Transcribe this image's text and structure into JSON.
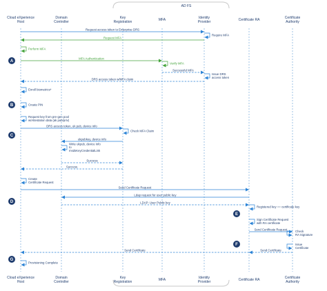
{
  "group": {
    "label": "AD FS"
  },
  "participants": [
    {
      "id": "host",
      "name": "Cloud eXperience\nHost"
    },
    {
      "id": "dc",
      "name": "Domain\nController"
    },
    {
      "id": "kr",
      "name": "Key\nRegistration"
    },
    {
      "id": "mfa",
      "name": "MFA"
    },
    {
      "id": "idp",
      "name": "Identity\nProvider"
    },
    {
      "id": "cra",
      "name": "Certificate RA"
    },
    {
      "id": "ca",
      "name": "Certificate\nAuthority"
    }
  ],
  "step_badges": [
    "A",
    "B",
    "C",
    "D",
    "E",
    "F",
    "G"
  ],
  "messages": [
    {
      "from": "host",
      "to": "idp",
      "label": "Request access token to Enterprise DRS",
      "style": "solid",
      "color": "blue"
    },
    {
      "from": "idp",
      "to": "idp",
      "label": "Require MFA",
      "style": "self",
      "color": "blue"
    },
    {
      "from": "idp",
      "to": "host",
      "label": "Request MFA",
      "style": "solid",
      "color": "green"
    },
    {
      "from": "host",
      "to": "host",
      "label": "Perform MFA",
      "style": "self",
      "color": "green"
    },
    {
      "from": "host",
      "to": "mfa",
      "label": "MFA Authentication",
      "style": "solid",
      "color": "green"
    },
    {
      "from": "mfa",
      "to": "mfa",
      "label": "Verify MFA",
      "style": "self",
      "color": "green"
    },
    {
      "from": "mfa",
      "to": "idp",
      "label": "Successful MFA",
      "style": "dashed",
      "color": "blue"
    },
    {
      "from": "idp",
      "to": "idp",
      "label": "Issue DRS\naccess token",
      "style": "self",
      "color": "blue"
    },
    {
      "from": "idp",
      "to": "host",
      "label": "DRS access token w/MFA claim",
      "style": "dashed",
      "color": "blue"
    },
    {
      "from": "host",
      "to": "host",
      "label": "Enroll biometrics*",
      "style": "self",
      "color": "blue"
    },
    {
      "from": "host",
      "to": "host",
      "label": "Create PIN",
      "style": "self",
      "color": "blue"
    },
    {
      "from": "host",
      "to": "host",
      "label": "Request key from pre-gen pool\nw/Attestation data (ak pub/priv)",
      "style": "self",
      "color": "blue"
    },
    {
      "from": "host",
      "to": "kr",
      "label": "DRS access token, uk pub, device info",
      "style": "solid",
      "color": "blue"
    },
    {
      "from": "kr",
      "to": "kr",
      "label": "Check MFA Claim",
      "style": "self",
      "color": "blue"
    },
    {
      "from": "kr",
      "to": "dc",
      "label": "ukpubkey, device info",
      "style": "solid",
      "color": "blue"
    },
    {
      "from": "dc",
      "to": "dc",
      "label": "Write ukpub, device info\nto\nmsdsKeyCredentialLink",
      "style": "self",
      "color": "blue"
    },
    {
      "from": "dc",
      "to": "kr",
      "label": "Success",
      "style": "dashed",
      "color": "blue"
    },
    {
      "from": "kr",
      "to": "host",
      "label": "Success",
      "style": "dashed",
      "color": "blue"
    },
    {
      "from": "host",
      "to": "host",
      "label": "Create\nCertificate Request",
      "style": "self",
      "color": "blue"
    },
    {
      "from": "host",
      "to": "cra",
      "label": "Send Certificate Request",
      "style": "solid",
      "color": "blue"
    },
    {
      "from": "cra",
      "to": "dc",
      "label": "Ldap request for user public key",
      "style": "solid",
      "color": "blue"
    },
    {
      "from": "dc",
      "to": "cra",
      "label": "LDAP: User Public key",
      "style": "dashed",
      "color": "blue"
    },
    {
      "from": "cra",
      "to": "cra",
      "label": "Registered key == certificate key",
      "style": "self",
      "color": "blue"
    },
    {
      "from": "cra",
      "to": "cra",
      "label": "Sign Certificate Request\nwith RA certificate",
      "style": "self",
      "color": "blue"
    },
    {
      "from": "cra",
      "to": "ca",
      "label": "Send Certificate Request",
      "style": "solid",
      "color": "blue"
    },
    {
      "from": "ca",
      "to": "ca",
      "label": "Check\nRA Signature",
      "style": "self",
      "color": "blue"
    },
    {
      "from": "ca",
      "to": "ca",
      "label": "Issue\nCertificate",
      "style": "self",
      "color": "blue"
    },
    {
      "from": "ca",
      "to": "cra",
      "label": "Send Certificate",
      "style": "dashed",
      "color": "blue"
    },
    {
      "from": "cra",
      "to": "host",
      "label": "Send Certificate",
      "style": "dashed",
      "color": "blue"
    },
    {
      "from": "host",
      "to": "host",
      "label": "Provisioning Complete",
      "style": "self",
      "color": "blue"
    }
  ],
  "colors": {
    "blue": "#2b83d6",
    "green": "#45a33c",
    "badge": "#1f3c6e",
    "text": "#1f3c6e",
    "lifeline": "#5b9bd5",
    "group": "#c8c8c8"
  }
}
